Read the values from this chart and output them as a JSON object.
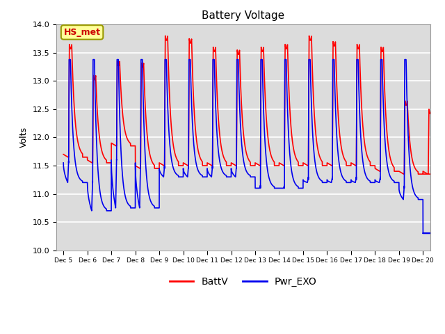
{
  "title": "Battery Voltage",
  "ylabel": "Volts",
  "ylim": [
    10.0,
    14.0
  ],
  "yticks": [
    10.0,
    10.5,
    11.0,
    11.5,
    12.0,
    12.5,
    13.0,
    13.5,
    14.0
  ],
  "bg_color": "#dcdcdc",
  "fig_color": "#ffffff",
  "red_color": "#ff0000",
  "blue_color": "#0000ee",
  "legend_label1": "BattV",
  "legend_label2": "Pwr_EXO",
  "annotation_text": "HS_met",
  "annotation_color": "#cc0000",
  "annotation_bg": "#ffff99",
  "annotation_border": "#999900",
  "red_peaks": [
    13.65,
    13.1,
    13.35,
    13.32,
    13.8,
    13.75,
    13.6,
    13.55,
    13.6,
    13.65,
    13.8,
    13.7,
    13.65,
    13.6,
    12.65,
    12.5
  ],
  "blue_peaks": [
    13.38,
    13.38,
    13.38,
    13.38,
    13.38,
    13.38,
    13.38,
    13.38,
    13.38,
    13.38,
    13.38,
    13.38,
    13.38,
    13.38,
    13.38,
    11.2
  ],
  "red_base": [
    11.65,
    11.55,
    11.85,
    11.45,
    11.5,
    11.5,
    11.5,
    11.5,
    11.5,
    11.5,
    11.5,
    11.5,
    11.5,
    11.4,
    11.35,
    11.35
  ],
  "blue_base": [
    11.55,
    11.2,
    11.6,
    11.55,
    11.45,
    11.45,
    11.45,
    11.45,
    11.1,
    11.1,
    11.25,
    11.25,
    11.25,
    11.25,
    11.1,
    10.3
  ],
  "blue_trough": [
    11.2,
    10.7,
    10.75,
    10.75,
    11.3,
    11.3,
    11.3,
    11.3,
    11.1,
    11.1,
    11.2,
    11.2,
    11.2,
    11.2,
    10.9,
    10.3
  ],
  "n_days": 16
}
